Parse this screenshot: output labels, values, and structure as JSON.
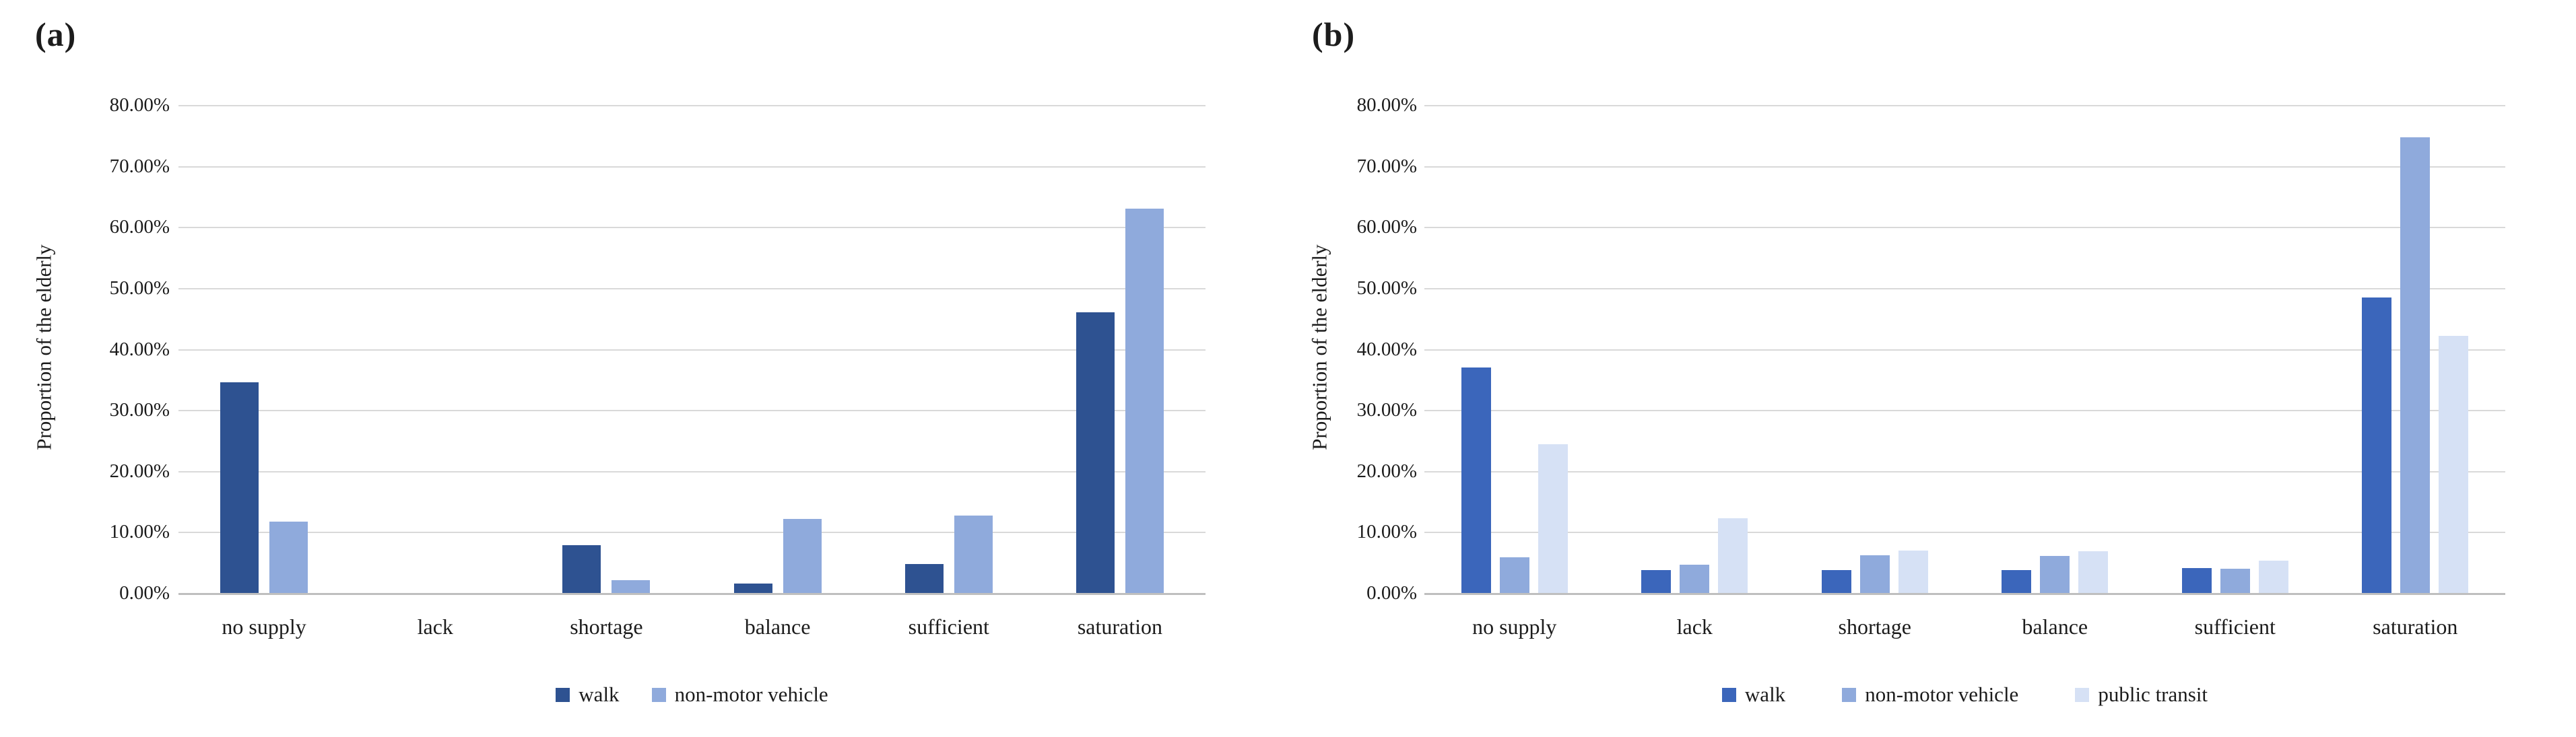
{
  "figure": {
    "description": "Two grouped bar charts comparing supply levels of facilities for the elderly by travel mode",
    "background_color": "#ffffff",
    "gridline_color": "#d9d9d9",
    "axis_line_color": "#bfbfbf"
  },
  "chart_data": [
    {
      "type": "bar",
      "panel_label": "(a)",
      "title": "",
      "xlabel": "",
      "ylabel": "Proportion of the elderly",
      "categories": [
        "no supply",
        "lack",
        "shortage",
        "balance",
        "sufficient",
        "saturation"
      ],
      "series": [
        {
          "name": "walk",
          "color": "#2e5291",
          "values": [
            34.5,
            0,
            7.8,
            1.5,
            4.8,
            46.0
          ]
        },
        {
          "name": "non-motor vehicle",
          "color": "#8faadc",
          "values": [
            11.7,
            0,
            2.1,
            12.1,
            12.7,
            63.0
          ]
        }
      ],
      "ylim": [
        0,
        80
      ],
      "y_tick_interval": 10,
      "y_tick_labels": [
        "80.00%",
        "70.00%",
        "60.00%",
        "50.00%",
        "40.00%",
        "30.00%",
        "20.00%",
        "10.00%",
        "0.00%"
      ],
      "grid": true,
      "legend_position": "bottom",
      "legend": [
        "walk",
        "non-motor vehicle"
      ]
    },
    {
      "type": "bar",
      "panel_label": "(b)",
      "title": "",
      "xlabel": "",
      "ylabel": "Proportion of the elderly",
      "categories": [
        "no supply",
        "lack",
        "shortage",
        "balance",
        "sufficient",
        "saturation"
      ],
      "series": [
        {
          "name": "walk",
          "color": "#3b66bb",
          "values": [
            37.0,
            3.7,
            3.7,
            3.7,
            4.1,
            48.4
          ]
        },
        {
          "name": "non-motor vehicle",
          "color": "#8faadc",
          "values": [
            5.9,
            4.6,
            6.2,
            6.1,
            4.0,
            74.7
          ]
        },
        {
          "name": "public transit",
          "color": "#d6e1f5",
          "values": [
            24.4,
            12.2,
            6.9,
            6.8,
            5.3,
            42.2
          ]
        }
      ],
      "ylim": [
        0,
        80
      ],
      "y_tick_interval": 10,
      "y_tick_labels": [
        "80.00%",
        "70.00%",
        "60.00%",
        "50.00%",
        "40.00%",
        "30.00%",
        "20.00%",
        "10.00%",
        "0.00%"
      ],
      "grid": true,
      "legend_position": "bottom",
      "legend": [
        "walk",
        "non-motor vehicle",
        "public transit"
      ]
    }
  ]
}
